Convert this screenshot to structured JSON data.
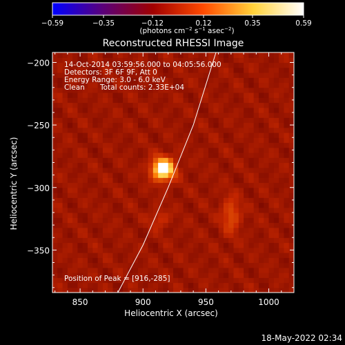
{
  "chart_data": {
    "type": "heatmap",
    "title": "Reconstructed RHESSI Image",
    "xlabel": "Heliocentric X (arcsec)",
    "ylabel": "Heliocentric Y (arcsec)",
    "xlim": [
      828,
      1020
    ],
    "ylim": [
      -384,
      -192
    ],
    "xticks": [
      850,
      900,
      950,
      1000
    ],
    "xtick_labels": [
      "850",
      "900",
      "950",
      "1000"
    ],
    "yticks": [
      -200,
      -250,
      -300,
      -350
    ],
    "ytick_labels": [
      "−200",
      "−250",
      "−300",
      "−350"
    ],
    "colorbar": {
      "min": -0.59,
      "max": 0.59,
      "ticks": [
        -0.59,
        -0.35,
        -0.12,
        0.12,
        0.35,
        0.59
      ],
      "tick_labels": [
        "−0.59",
        "−0.35",
        "−0.12",
        "0.12",
        "0.35",
        "0.59"
      ],
      "units_main": "(photons cm",
      "units_exp1": "−2",
      "units_mid1": " s",
      "units_exp2": "−1",
      "units_mid2": " asec",
      "units_exp3": "−2",
      "units_end": ")",
      "colors": [
        "#0000ff",
        "#5a007a",
        "#a00000",
        "#ff4a00",
        "#ffd23a",
        "#ffffff"
      ]
    },
    "sources": [
      {
        "x": 916,
        "y": -285,
        "amplitude": 0.59,
        "sigma_x": 6,
        "sigma_y": 6
      },
      {
        "x": 970,
        "y": -322,
        "amplitude": 0.16,
        "sigma_x": 5,
        "sigma_y": 10
      },
      {
        "x": 913,
        "y": -325,
        "amplitude": 0.1,
        "sigma_x": 5,
        "sigma_y": 5
      }
    ],
    "solar_limb": {
      "points": [
        [
          880,
          -384
        ],
        [
          900,
          -346
        ],
        [
          920,
          -300
        ],
        [
          940,
          -250
        ],
        [
          958,
          -192
        ]
      ]
    },
    "annotations": {
      "time_range": "14-Oct-2014 03:59:56.000 to 04:05:56.000",
      "detectors": "Detectors: 3F 6F 9F, Att 0",
      "energy": "Energy Range: 3.0 - 6.0 keV",
      "clean_label": "Clean",
      "total_counts": "Total counts: 2.33E+04",
      "peak": "Position of Peak = [916,-285]"
    },
    "timestamp": "18-May-2022 02:34"
  }
}
